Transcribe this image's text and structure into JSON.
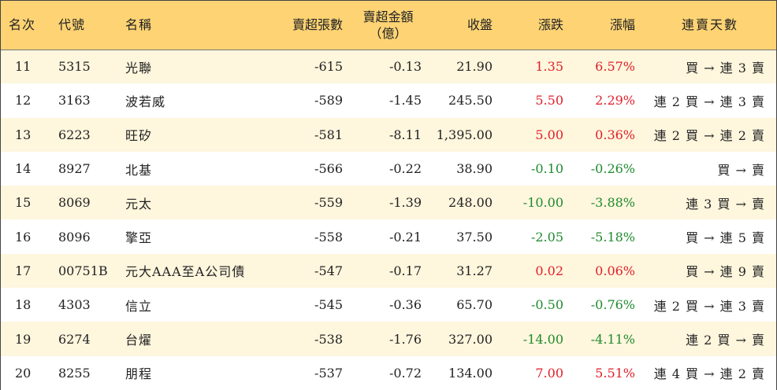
{
  "headers": {
    "rank": "名次",
    "code": "代號",
    "name": "名稱",
    "sell_lots": "賣超張數",
    "sell_amount_line1": "賣超金額",
    "sell_amount_line2": "（億）",
    "close": "收盤",
    "change": "漲跌",
    "change_pct": "漲幅",
    "streak": "連賣天數"
  },
  "colors": {
    "header_bg": "#fdd374",
    "odd_row_bg": "#fef6dd",
    "up": "#e0202a",
    "down": "#1e8a2e"
  },
  "rows": [
    {
      "rank": "11",
      "code": "5315",
      "name": "光聯",
      "sell_lots": "-615",
      "sell_amount": "-0.13",
      "close": "21.90",
      "change": "1.35",
      "change_pct": "6.57%",
      "direction": "up",
      "streak": "買 → 連 3 賣"
    },
    {
      "rank": "12",
      "code": "3163",
      "name": "波若威",
      "sell_lots": "-589",
      "sell_amount": "-1.45",
      "close": "245.50",
      "change": "5.50",
      "change_pct": "2.29%",
      "direction": "up",
      "streak": "連 2 買 → 連 3 賣"
    },
    {
      "rank": "13",
      "code": "6223",
      "name": "旺矽",
      "sell_lots": "-581",
      "sell_amount": "-8.11",
      "close": "1,395.00",
      "change": "5.00",
      "change_pct": "0.36%",
      "direction": "up",
      "streak": "連 2 買 → 連 2 賣"
    },
    {
      "rank": "14",
      "code": "8927",
      "name": "北基",
      "sell_lots": "-566",
      "sell_amount": "-0.22",
      "close": "38.90",
      "change": "-0.10",
      "change_pct": "-0.26%",
      "direction": "down",
      "streak": "買 → 賣"
    },
    {
      "rank": "15",
      "code": "8069",
      "name": "元太",
      "sell_lots": "-559",
      "sell_amount": "-1.39",
      "close": "248.00",
      "change": "-10.00",
      "change_pct": "-3.88%",
      "direction": "down",
      "streak": "連 3 買 → 賣"
    },
    {
      "rank": "16",
      "code": "8096",
      "name": "擎亞",
      "sell_lots": "-558",
      "sell_amount": "-0.21",
      "close": "37.50",
      "change": "-2.05",
      "change_pct": "-5.18%",
      "direction": "down",
      "streak": "買 → 連 5 賣"
    },
    {
      "rank": "17",
      "code": "00751B",
      "name": "元大AAA至A公司債",
      "sell_lots": "-547",
      "sell_amount": "-0.17",
      "close": "31.27",
      "change": "0.02",
      "change_pct": "0.06%",
      "direction": "up",
      "streak": "買 → 連 9 賣"
    },
    {
      "rank": "18",
      "code": "4303",
      "name": "信立",
      "sell_lots": "-545",
      "sell_amount": "-0.36",
      "close": "65.70",
      "change": "-0.50",
      "change_pct": "-0.76%",
      "direction": "down",
      "streak": "連 2 買 → 連 3 賣"
    },
    {
      "rank": "19",
      "code": "6274",
      "name": "台燿",
      "sell_lots": "-538",
      "sell_amount": "-1.76",
      "close": "327.00",
      "change": "-14.00",
      "change_pct": "-4.11%",
      "direction": "down",
      "streak": "連 2 買 → 賣"
    },
    {
      "rank": "20",
      "code": "8255",
      "name": "朋程",
      "sell_lots": "-537",
      "sell_amount": "-0.72",
      "close": "134.00",
      "change": "7.00",
      "change_pct": "5.51%",
      "direction": "up",
      "streak": "連 4 買 → 連 2 賣"
    }
  ]
}
